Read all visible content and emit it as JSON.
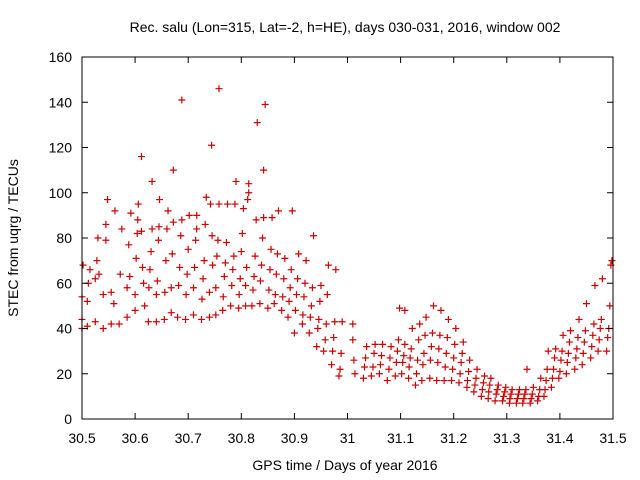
{
  "chart_data": {
    "type": "scatter",
    "title": "Rec. salu (Lon=315, Lat=-2, h=HE), days 030-031, 2016, window 002",
    "xlabel": "GPS time / Days of year 2016",
    "ylabel": "STEC from uqrg / TECUs",
    "xlim": [
      30.5,
      31.5
    ],
    "ylim": [
      0,
      160
    ],
    "xticks": [
      "30.5",
      "30.6",
      "30.7",
      "30.8",
      "30.9",
      "31",
      "31.1",
      "31.2",
      "31.3",
      "31.4",
      "31.5"
    ],
    "yticks": [
      "0",
      "20",
      "40",
      "60",
      "80",
      "100",
      "120",
      "140",
      "160"
    ],
    "grid": false,
    "legend": "none",
    "marker": "+",
    "color": "#cc0000",
    "points": [
      [
        30.5,
        40
      ],
      [
        30.5,
        44
      ],
      [
        30.5,
        54
      ],
      [
        30.502,
        68
      ],
      [
        30.51,
        41
      ],
      [
        30.51,
        52
      ],
      [
        30.512,
        60
      ],
      [
        30.515,
        66
      ],
      [
        30.525,
        43
      ],
      [
        30.525,
        62
      ],
      [
        30.528,
        70
      ],
      [
        30.53,
        80
      ],
      [
        30.532,
        64
      ],
      [
        30.54,
        40
      ],
      [
        30.54,
        55
      ],
      [
        30.545,
        79
      ],
      [
        30.545,
        86
      ],
      [
        30.548,
        97
      ],
      [
        30.555,
        42
      ],
      [
        30.555,
        56
      ],
      [
        30.56,
        51
      ],
      [
        30.562,
        92
      ],
      [
        30.57,
        42
      ],
      [
        30.572,
        64
      ],
      [
        30.575,
        84
      ],
      [
        30.585,
        45
      ],
      [
        30.585,
        58
      ],
      [
        30.588,
        77
      ],
      [
        30.59,
        63
      ],
      [
        30.592,
        91
      ],
      [
        30.6,
        48
      ],
      [
        30.6,
        55
      ],
      [
        30.602,
        71
      ],
      [
        30.604,
        82
      ],
      [
        30.605,
        88
      ],
      [
        30.606,
        95
      ],
      [
        30.612,
        116
      ],
      [
        30.612,
        83
      ],
      [
        30.614,
        67
      ],
      [
        30.616,
        60
      ],
      [
        30.618,
        50
      ],
      [
        30.625,
        43
      ],
      [
        30.626,
        58
      ],
      [
        30.628,
        66
      ],
      [
        30.63,
        74
      ],
      [
        30.632,
        84
      ],
      [
        30.632,
        105
      ],
      [
        30.64,
        43
      ],
      [
        30.64,
        55
      ],
      [
        30.642,
        61
      ],
      [
        30.644,
        79
      ],
      [
        30.645,
        85
      ],
      [
        30.646,
        97
      ],
      [
        30.655,
        44
      ],
      [
        30.656,
        56
      ],
      [
        30.658,
        70
      ],
      [
        30.66,
        84
      ],
      [
        30.662,
        92
      ],
      [
        30.668,
        47
      ],
      [
        30.668,
        58
      ],
      [
        30.67,
        73
      ],
      [
        30.672,
        87
      ],
      [
        30.672,
        110
      ],
      [
        30.68,
        45
      ],
      [
        30.682,
        59
      ],
      [
        30.684,
        67
      ],
      [
        30.686,
        81
      ],
      [
        30.688,
        88
      ],
      [
        30.688,
        141
      ],
      [
        30.695,
        44
      ],
      [
        30.696,
        55
      ],
      [
        30.698,
        64
      ],
      [
        30.7,
        75
      ],
      [
        30.702,
        90
      ],
      [
        30.71,
        46
      ],
      [
        30.71,
        58
      ],
      [
        30.712,
        67
      ],
      [
        30.714,
        79
      ],
      [
        30.716,
        84
      ],
      [
        30.716,
        90
      ],
      [
        30.725,
        44
      ],
      [
        30.726,
        53
      ],
      [
        30.728,
        62
      ],
      [
        30.73,
        70
      ],
      [
        30.732,
        86
      ],
      [
        30.734,
        98
      ],
      [
        30.74,
        45
      ],
      [
        30.74,
        56
      ],
      [
        30.742,
        95
      ],
      [
        30.744,
        121
      ],
      [
        30.745,
        81
      ],
      [
        30.746,
        68
      ],
      [
        30.752,
        46
      ],
      [
        30.752,
        58
      ],
      [
        30.754,
        72
      ],
      [
        30.756,
        79
      ],
      [
        30.758,
        146
      ],
      [
        30.758,
        95
      ],
      [
        30.765,
        48
      ],
      [
        30.766,
        54
      ],
      [
        30.768,
        63
      ],
      [
        30.77,
        69
      ],
      [
        30.772,
        78
      ],
      [
        30.774,
        95
      ],
      [
        30.78,
        50
      ],
      [
        30.782,
        59
      ],
      [
        30.784,
        66
      ],
      [
        30.786,
        72
      ],
      [
        30.788,
        95
      ],
      [
        30.79,
        105
      ],
      [
        30.795,
        49
      ],
      [
        30.796,
        55
      ],
      [
        30.798,
        62
      ],
      [
        30.8,
        74
      ],
      [
        30.802,
        82
      ],
      [
        30.804,
        93
      ],
      [
        30.808,
        50
      ],
      [
        30.808,
        59
      ],
      [
        30.81,
        67
      ],
      [
        30.812,
        97
      ],
      [
        30.814,
        100
      ],
      [
        30.814,
        104
      ],
      [
        30.82,
        50
      ],
      [
        30.822,
        57
      ],
      [
        30.824,
        63
      ],
      [
        30.826,
        72
      ],
      [
        30.828,
        88
      ],
      [
        30.83,
        131
      ],
      [
        30.835,
        51
      ],
      [
        30.836,
        61
      ],
      [
        30.838,
        68
      ],
      [
        30.84,
        80
      ],
      [
        30.842,
        89
      ],
      [
        30.842,
        110
      ],
      [
        30.845,
        139
      ],
      [
        30.85,
        49
      ],
      [
        30.852,
        57
      ],
      [
        30.854,
        66
      ],
      [
        30.856,
        75
      ],
      [
        30.858,
        89
      ],
      [
        30.862,
        51
      ],
      [
        30.864,
        55
      ],
      [
        30.866,
        64
      ],
      [
        30.868,
        73
      ],
      [
        30.87,
        92
      ],
      [
        30.876,
        48
      ],
      [
        30.878,
        54
      ],
      [
        30.88,
        62
      ],
      [
        30.882,
        71
      ],
      [
        30.888,
        45
      ],
      [
        30.89,
        52
      ],
      [
        30.892,
        58
      ],
      [
        30.894,
        66
      ],
      [
        30.896,
        92
      ],
      [
        30.9,
        38
      ],
      [
        30.902,
        48
      ],
      [
        30.904,
        55
      ],
      [
        30.906,
        62
      ],
      [
        30.908,
        73
      ],
      [
        30.915,
        42
      ],
      [
        30.916,
        46
      ],
      [
        30.918,
        54
      ],
      [
        30.92,
        60
      ],
      [
        30.922,
        70
      ],
      [
        30.928,
        38
      ],
      [
        30.93,
        45
      ],
      [
        30.932,
        50
      ],
      [
        30.934,
        58
      ],
      [
        30.936,
        81
      ],
      [
        30.942,
        32
      ],
      [
        30.944,
        40
      ],
      [
        30.946,
        44
      ],
      [
        30.948,
        52
      ],
      [
        30.95,
        59
      ],
      [
        30.955,
        30
      ],
      [
        30.958,
        35
      ],
      [
        30.96,
        42
      ],
      [
        30.962,
        55
      ],
      [
        30.964,
        68
      ],
      [
        30.97,
        24
      ],
      [
        30.972,
        30
      ],
      [
        30.974,
        36
      ],
      [
        30.976,
        43
      ],
      [
        30.978,
        66
      ],
      [
        30.984,
        19
      ],
      [
        30.986,
        22
      ],
      [
        30.988,
        29
      ],
      [
        30.99,
        43
      ],
      [
        31.01,
        42
      ],
      [
        31.01,
        35
      ],
      [
        31.012,
        26
      ],
      [
        31.014,
        20
      ],
      [
        31.03,
        18
      ],
      [
        31.032,
        23
      ],
      [
        31.034,
        27
      ],
      [
        31.036,
        32
      ],
      [
        31.045,
        19
      ],
      [
        31.048,
        23
      ],
      [
        31.05,
        29
      ],
      [
        31.052,
        33
      ],
      [
        31.06,
        20
      ],
      [
        31.062,
        24
      ],
      [
        31.064,
        28
      ],
      [
        31.066,
        33
      ],
      [
        31.075,
        17
      ],
      [
        31.078,
        22
      ],
      [
        31.08,
        27
      ],
      [
        31.082,
        32
      ],
      [
        31.09,
        19
      ],
      [
        31.092,
        25
      ],
      [
        31.094,
        30
      ],
      [
        31.096,
        35
      ],
      [
        31.098,
        49
      ],
      [
        31.102,
        20
      ],
      [
        31.104,
        25
      ],
      [
        31.106,
        28
      ],
      [
        31.108,
        33
      ],
      [
        31.108,
        48
      ],
      [
        31.115,
        18
      ],
      [
        31.116,
        23
      ],
      [
        31.118,
        27
      ],
      [
        31.12,
        31
      ],
      [
        31.122,
        40
      ],
      [
        31.128,
        15
      ],
      [
        31.13,
        20
      ],
      [
        31.132,
        26
      ],
      [
        31.134,
        35
      ],
      [
        31.136,
        42
      ],
      [
        31.14,
        17
      ],
      [
        31.142,
        24
      ],
      [
        31.144,
        29
      ],
      [
        31.146,
        37
      ],
      [
        31.148,
        45
      ],
      [
        31.155,
        18
      ],
      [
        31.156,
        26
      ],
      [
        31.158,
        32
      ],
      [
        31.16,
        38
      ],
      [
        31.162,
        50
      ],
      [
        31.168,
        17
      ],
      [
        31.17,
        25
      ],
      [
        31.172,
        31
      ],
      [
        31.174,
        37
      ],
      [
        31.176,
        48
      ],
      [
        31.182,
        17
      ],
      [
        31.184,
        23
      ],
      [
        31.186,
        29
      ],
      [
        31.188,
        36
      ],
      [
        31.19,
        44
      ],
      [
        31.196,
        17
      ],
      [
        31.198,
        22
      ],
      [
        31.2,
        27
      ],
      [
        31.202,
        33
      ],
      [
        31.204,
        40
      ],
      [
        31.21,
        16
      ],
      [
        31.212,
        20
      ],
      [
        31.214,
        25
      ],
      [
        31.216,
        29
      ],
      [
        31.218,
        34
      ],
      [
        31.225,
        14
      ],
      [
        31.226,
        17
      ],
      [
        31.228,
        21
      ],
      [
        31.23,
        26
      ],
      [
        31.238,
        12
      ],
      [
        31.24,
        15
      ],
      [
        31.242,
        18
      ],
      [
        31.244,
        22
      ],
      [
        31.252,
        10
      ],
      [
        31.254,
        13
      ],
      [
        31.256,
        16
      ],
      [
        31.258,
        19
      ],
      [
        31.265,
        9
      ],
      [
        31.266,
        12
      ],
      [
        31.268,
        15
      ],
      [
        31.27,
        18
      ],
      [
        31.278,
        8
      ],
      [
        31.28,
        11
      ],
      [
        31.282,
        13
      ],
      [
        31.284,
        15
      ],
      [
        31.292,
        8
      ],
      [
        31.294,
        10
      ],
      [
        31.296,
        12
      ],
      [
        31.298,
        14
      ],
      [
        31.305,
        7
      ],
      [
        31.306,
        9
      ],
      [
        31.308,
        11
      ],
      [
        31.31,
        13
      ],
      [
        31.318,
        7
      ],
      [
        31.32,
        9
      ],
      [
        31.322,
        11
      ],
      [
        31.324,
        13
      ],
      [
        31.33,
        7
      ],
      [
        31.332,
        9
      ],
      [
        31.334,
        11
      ],
      [
        31.336,
        13
      ],
      [
        31.338,
        22
      ],
      [
        31.344,
        7
      ],
      [
        31.346,
        9
      ],
      [
        31.348,
        11
      ],
      [
        31.35,
        14
      ],
      [
        31.358,
        8
      ],
      [
        31.36,
        10
      ],
      [
        31.362,
        13
      ],
      [
        31.364,
        18
      ],
      [
        31.37,
        10
      ],
      [
        31.372,
        13
      ],
      [
        31.374,
        17
      ],
      [
        31.376,
        22
      ],
      [
        31.378,
        30
      ],
      [
        31.384,
        14
      ],
      [
        31.386,
        18
      ],
      [
        31.388,
        22
      ],
      [
        31.39,
        27
      ],
      [
        31.392,
        31
      ],
      [
        31.398,
        18
      ],
      [
        31.4,
        21
      ],
      [
        31.402,
        26
      ],
      [
        31.404,
        30
      ],
      [
        31.406,
        37
      ],
      [
        31.412,
        20
      ],
      [
        31.414,
        25
      ],
      [
        31.416,
        29
      ],
      [
        31.418,
        34
      ],
      [
        31.42,
        39
      ],
      [
        31.428,
        22
      ],
      [
        31.43,
        27
      ],
      [
        31.432,
        31
      ],
      [
        31.434,
        36
      ],
      [
        31.436,
        44
      ],
      [
        31.442,
        24
      ],
      [
        31.444,
        29
      ],
      [
        31.446,
        34
      ],
      [
        31.448,
        39
      ],
      [
        31.45,
        51
      ],
      [
        31.458,
        27
      ],
      [
        31.46,
        32
      ],
      [
        31.462,
        37
      ],
      [
        31.464,
        42
      ],
      [
        31.466,
        59
      ],
      [
        31.472,
        30
      ],
      [
        31.474,
        35
      ],
      [
        31.476,
        40
      ],
      [
        31.478,
        44
      ],
      [
        31.48,
        62
      ],
      [
        31.488,
        30
      ],
      [
        31.49,
        36
      ],
      [
        31.492,
        40
      ],
      [
        31.494,
        50
      ],
      [
        31.496,
        68
      ],
      [
        31.498,
        70
      ]
    ]
  }
}
